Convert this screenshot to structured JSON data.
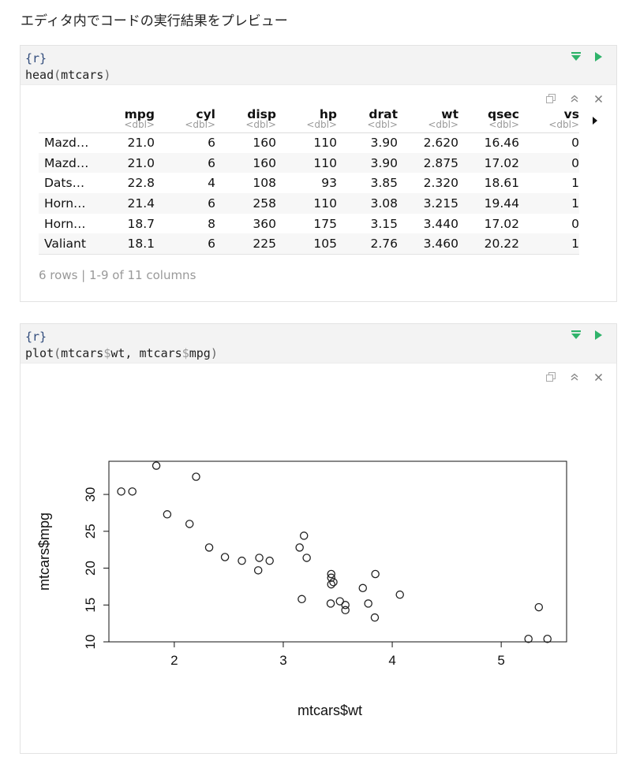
{
  "heading": "エディタ内でコードの実行結果をプレビュー",
  "chunk1": {
    "header": "{r}",
    "code": {
      "fn": "head",
      "open": "(",
      "arg": "mtcars",
      "close": ")"
    },
    "table": {
      "columns": [
        {
          "name": "mpg",
          "type": "<dbl>"
        },
        {
          "name": "cyl",
          "type": "<dbl>"
        },
        {
          "name": "disp",
          "type": "<dbl>"
        },
        {
          "name": "hp",
          "type": "<dbl>"
        },
        {
          "name": "drat",
          "type": "<dbl>"
        },
        {
          "name": "wt",
          "type": "<dbl>"
        },
        {
          "name": "qsec",
          "type": "<dbl>"
        },
        {
          "name": "vs",
          "type": "<dbl>"
        }
      ],
      "rows": [
        [
          "Mazd…",
          "21.0",
          "6",
          "160",
          "110",
          "3.90",
          "2.620",
          "16.46",
          "0"
        ],
        [
          "Mazd…",
          "21.0",
          "6",
          "160",
          "110",
          "3.90",
          "2.875",
          "17.02",
          "0"
        ],
        [
          "Dats…",
          "22.8",
          "4",
          "108",
          "93",
          "3.85",
          "2.320",
          "18.61",
          "1"
        ],
        [
          "Horn…",
          "21.4",
          "6",
          "258",
          "110",
          "3.08",
          "3.215",
          "19.44",
          "1"
        ],
        [
          "Horn…",
          "18.7",
          "8",
          "360",
          "175",
          "3.15",
          "3.440",
          "17.02",
          "0"
        ],
        [
          "Valiant",
          "18.1",
          "6",
          "225",
          "105",
          "2.76",
          "3.460",
          "20.22",
          "1"
        ]
      ],
      "footer": "6 rows | 1-9 of 11 columns"
    }
  },
  "chunk2": {
    "header": "{r}",
    "code": {
      "fn": "plot",
      "open": "(",
      "a1": "mtcars",
      "d1": "$",
      "b1": "wt, ",
      "a2": "mtcars",
      "d2": "$",
      "b2": "mpg",
      "close": ")"
    }
  },
  "icons": {
    "run_above": "run-chunks-above-icon",
    "run_chunk": "run-chunk-icon",
    "copy": "copy-icon",
    "collapse": "collapse-output-icon",
    "close": "close-output-icon",
    "next": "next-columns-icon"
  },
  "colors": {
    "run_green": "#2fb36a",
    "code_bg": "#f3f3f3",
    "chunk_header": "#2f4a7a"
  },
  "chart_data": {
    "type": "scatter",
    "xlabel": "mtcars$wt",
    "ylabel": "mtcars$mpg",
    "xlim": [
      1.4,
      5.6
    ],
    "ylim": [
      10,
      34.5
    ],
    "xticks": [
      2,
      3,
      4,
      5
    ],
    "yticks": [
      10,
      15,
      20,
      25,
      30
    ],
    "grid": false,
    "points": [
      [
        2.62,
        21.0
      ],
      [
        2.875,
        21.0
      ],
      [
        2.32,
        22.8
      ],
      [
        3.215,
        21.4
      ],
      [
        3.44,
        18.7
      ],
      [
        3.46,
        18.1
      ],
      [
        3.57,
        14.3
      ],
      [
        3.19,
        24.4
      ],
      [
        3.15,
        22.8
      ],
      [
        3.44,
        19.2
      ],
      [
        3.44,
        17.8
      ],
      [
        4.07,
        16.4
      ],
      [
        3.73,
        17.3
      ],
      [
        3.78,
        15.2
      ],
      [
        5.25,
        10.4
      ],
      [
        5.424,
        10.4
      ],
      [
        5.345,
        14.7
      ],
      [
        2.2,
        32.4
      ],
      [
        1.615,
        30.4
      ],
      [
        1.835,
        33.9
      ],
      [
        2.465,
        21.5
      ],
      [
        3.52,
        15.5
      ],
      [
        3.435,
        15.2
      ],
      [
        3.84,
        13.3
      ],
      [
        3.845,
        19.2
      ],
      [
        1.935,
        27.3
      ],
      [
        2.14,
        26.0
      ],
      [
        1.513,
        30.4
      ],
      [
        3.17,
        15.8
      ],
      [
        2.77,
        19.7
      ],
      [
        3.57,
        15.0
      ],
      [
        2.78,
        21.4
      ]
    ]
  }
}
